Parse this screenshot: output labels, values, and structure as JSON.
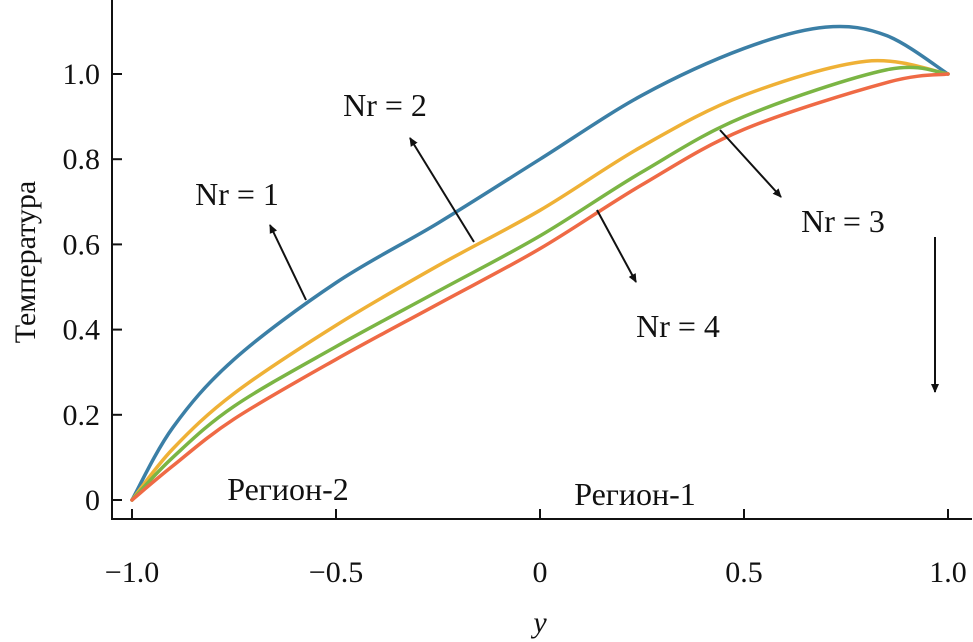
{
  "chart_data": {
    "type": "line",
    "title": "",
    "xlabel": "y",
    "ylabel": "Температура",
    "xlim": [
      -1.0,
      1.0
    ],
    "ylim": [
      0,
      1.2
    ],
    "xticks": [
      -1.0,
      -0.5,
      0,
      0.5,
      1.0
    ],
    "xtick_labels": [
      "−1.0",
      "−0.5",
      "0",
      "0.5",
      "1.0"
    ],
    "yticks": [
      0,
      0.2,
      0.4,
      0.6,
      0.8,
      1.0
    ],
    "ytick_labels": [
      "0",
      "0.2",
      "0.4",
      "0.6",
      "0.8",
      "1.0"
    ],
    "grid": false,
    "series": [
      {
        "name": "Nr = 1",
        "color": "#3b7fa6",
        "x": [
          -1,
          -0.9,
          -0.75,
          -0.5,
          -0.25,
          0,
          0.25,
          0.5,
          0.7,
          0.85,
          1
        ],
        "y": [
          0,
          0.17,
          0.33,
          0.51,
          0.65,
          0.8,
          0.95,
          1.06,
          1.11,
          1.09,
          1.0
        ]
      },
      {
        "name": "Nr = 2",
        "color": "#efb136",
        "x": [
          -1,
          -0.9,
          -0.75,
          -0.5,
          -0.25,
          0,
          0.25,
          0.5,
          0.8,
          1
        ],
        "y": [
          0,
          0.12,
          0.25,
          0.41,
          0.55,
          0.68,
          0.83,
          0.95,
          1.03,
          1.0
        ]
      },
      {
        "name": "Nr = 3",
        "color": "#7bb544",
        "x": [
          -1,
          -0.9,
          -0.75,
          -0.5,
          -0.25,
          0,
          0.25,
          0.5,
          0.85,
          1
        ],
        "y": [
          0,
          0.1,
          0.22,
          0.36,
          0.49,
          0.62,
          0.77,
          0.9,
          1.01,
          1.0
        ]
      },
      {
        "name": "Nr = 4",
        "color": "#ef6a45",
        "x": [
          -1,
          -0.9,
          -0.75,
          -0.5,
          -0.25,
          0,
          0.25,
          0.5,
          0.85,
          1
        ],
        "y": [
          0,
          0.08,
          0.19,
          0.33,
          0.46,
          0.59,
          0.74,
          0.87,
          0.98,
          1.0
        ]
      }
    ],
    "annotations": {
      "nr1": "Nr = 1",
      "nr2": "Nr = 2",
      "nr3": "Nr = 3",
      "nr4": "Nr = 4",
      "region2": "Регион-2",
      "region1": "Регион-1"
    }
  }
}
